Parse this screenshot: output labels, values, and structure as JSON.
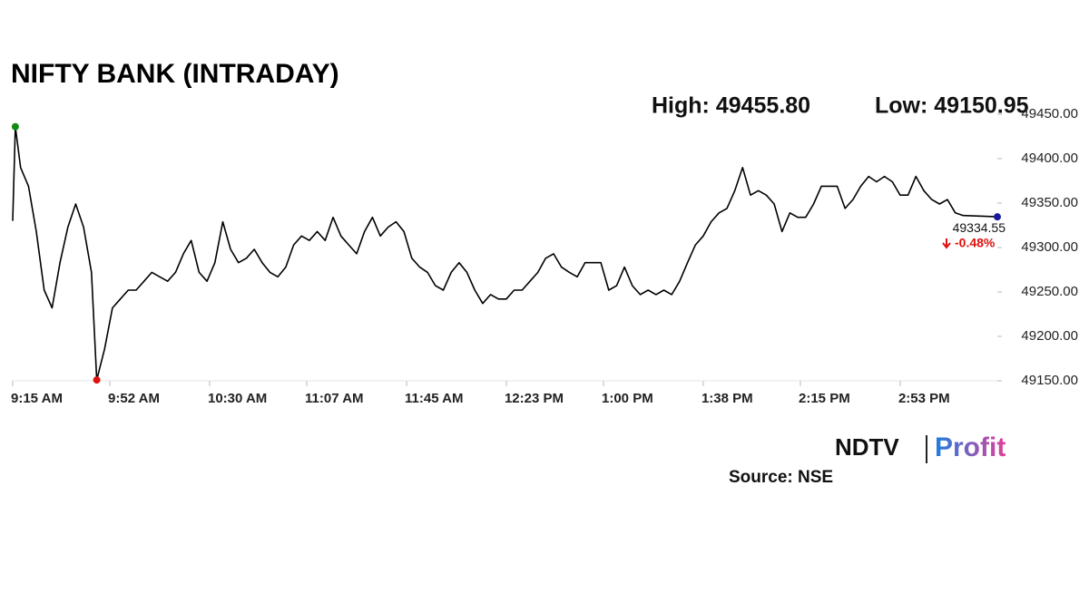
{
  "chart_data": {
    "type": "line",
    "title": "NIFTY BANK (INTRADAY)",
    "annotations": [
      "High: 49455.80",
      "Low: 49150.95"
    ],
    "change": "-0.48%",
    "source": "Source: NSE",
    "logo": {
      "left": "NDTV",
      "right": "Profit"
    },
    "color": "#000000",
    "high_color": "#138a13",
    "low_color": "#e01010",
    "last_color": "#1a1a9c",
    "x": [
      "9:15",
      "9:16",
      "9:18",
      "9:21",
      "9:24",
      "9:27",
      "9:30",
      "9:33",
      "9:36",
      "9:39",
      "9:42",
      "9:45",
      "9:47",
      "9:50",
      "9:53",
      "9:56",
      "9:59",
      "10:02",
      "10:05",
      "10:08",
      "10:11",
      "10:14",
      "10:17",
      "10:20",
      "10:23",
      "10:26",
      "10:29",
      "10:32",
      "10:35",
      "10:38",
      "10:41",
      "10:44",
      "10:47",
      "10:50",
      "10:53",
      "10:56",
      "10:59",
      "11:02",
      "11:05",
      "11:08",
      "11:11",
      "11:14",
      "11:17",
      "11:20",
      "11:23",
      "11:26",
      "11:29",
      "11:32",
      "11:35",
      "11:38",
      "11:41",
      "11:44",
      "11:47",
      "11:50",
      "11:53",
      "11:56",
      "11:59",
      "12:02",
      "12:05",
      "12:08",
      "12:11",
      "12:14",
      "12:17",
      "12:20",
      "12:23",
      "12:26",
      "12:29",
      "12:32",
      "12:35",
      "12:38",
      "12:41",
      "12:44",
      "12:47",
      "12:50",
      "12:53",
      "12:56",
      "12:59",
      "13:02",
      "13:05",
      "13:08",
      "13:11",
      "13:14",
      "13:17",
      "13:20",
      "13:23",
      "13:26",
      "13:29",
      "13:32",
      "13:35",
      "13:38",
      "13:41",
      "13:44",
      "13:47",
      "13:50",
      "13:53",
      "13:56",
      "13:59",
      "14:02",
      "14:05",
      "14:08",
      "14:11",
      "14:14",
      "14:17",
      "14:20",
      "14:23",
      "14:26",
      "14:29",
      "14:32",
      "14:35",
      "14:38",
      "14:41",
      "14:44",
      "14:47",
      "14:50",
      "14:53",
      "14:56",
      "14:59",
      "15:02",
      "15:05",
      "15:08",
      "15:11",
      "15:14",
      "15:17",
      "15:30"
    ],
    "values": [
      49330,
      49436,
      49390,
      49369,
      49318,
      49252,
      49232,
      49283,
      49323,
      49349,
      49323,
      49272,
      49150.95,
      49186,
      49232,
      49242,
      49252,
      49252,
      49262,
      49272,
      49267,
      49262,
      49272,
      49293,
      49308,
      49272,
      49262,
      49283,
      49329,
      49298,
      49283,
      49288,
      49298,
      49283,
      49272,
      49267,
      49278,
      49303,
      49313,
      49308,
      49318,
      49308,
      49334,
      49313,
      49303,
      49293,
      49318,
      49334,
      49313,
      49323,
      49329,
      49318,
      49288,
      49278,
      49272,
      49257,
      49252,
      49272,
      49283,
      49272,
      49252,
      49237,
      49247,
      49242,
      49242,
      49252,
      49252,
      49262,
      49272,
      49288,
      49293,
      49278,
      49272,
      49267,
      49283,
      49283,
      49283,
      49252,
      49257,
      49278,
      49257,
      49247,
      49252,
      49247,
      49252,
      49247,
      49262,
      49283,
      49303,
      49313,
      49329,
      49339,
      49344,
      49364,
      49390,
      49359,
      49364,
      49359,
      49349,
      49318,
      49339,
      49334,
      49334,
      49349,
      49369,
      49369,
      49369,
      49344,
      49354,
      49369,
      49380,
      49374,
      49380,
      49374,
      49359,
      49359,
      49380,
      49364,
      49354,
      49349,
      49354,
      49339,
      49336,
      49334.55
    ],
    "xlim": [
      "9:15",
      "15:30"
    ],
    "xticks": [
      {
        "value": "9:15",
        "label": "9:15 AM"
      },
      {
        "value": "9:52",
        "label": "9:52 AM"
      },
      {
        "value": "10:30",
        "label": "10:30 AM"
      },
      {
        "value": "11:07",
        "label": "11:07 AM"
      },
      {
        "value": "11:45",
        "label": "11:45 AM"
      },
      {
        "value": "12:23",
        "label": "12:23 PM"
      },
      {
        "value": "13:00",
        "label": "1:00 PM"
      },
      {
        "value": "13:38",
        "label": "1:38 PM"
      },
      {
        "value": "14:15",
        "label": "2:15 PM"
      },
      {
        "value": "14:53",
        "label": "2:53 PM"
      }
    ],
    "ylim": [
      49150,
      49450
    ],
    "yticks": [
      {
        "value": 49150,
        "label": "49150.00"
      },
      {
        "value": 49200,
        "label": "49200.00"
      },
      {
        "value": 49250,
        "label": "49250.00"
      },
      {
        "value": 49300,
        "label": "49300.00"
      },
      {
        "value": 49350,
        "label": "49350.00"
      },
      {
        "value": 49400,
        "label": "49400.00"
      },
      {
        "value": 49450,
        "label": "49450.00"
      }
    ]
  }
}
